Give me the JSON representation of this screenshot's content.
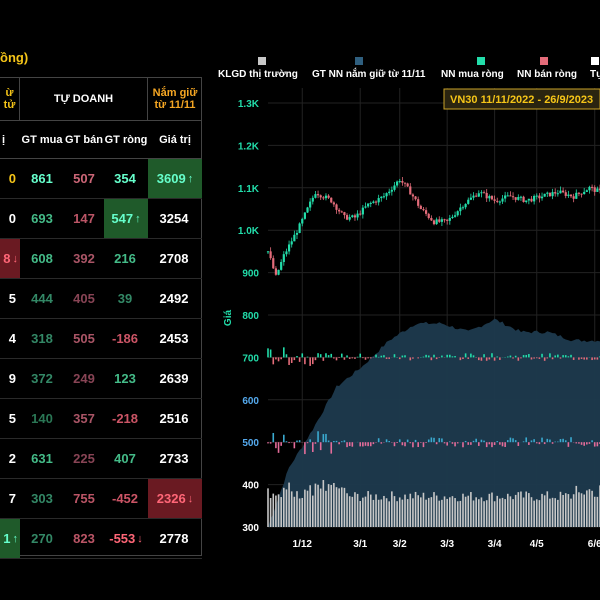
{
  "header_fragment": "ồng)",
  "table": {
    "left_header": "ừ tử",
    "group_header": "TỰ DOANH",
    "holding_header_line1": "Nắm giữ",
    "holding_header_line2": "từ 11/11",
    "col_left": "ị",
    "col_buy": "GT mua",
    "col_sell": "GT bán",
    "col_net": "GT ròng",
    "col_value": "Giá trị",
    "rows": [
      {
        "left": "0",
        "left_arrow": "",
        "left_color": "#f5c518",
        "left_bg": "",
        "buy": "861",
        "buy_color": "#66ffcc",
        "sell": "507",
        "sell_color": "#cc6677",
        "net": "354",
        "net_arrow": "",
        "net_color": "#66ffcc",
        "net_bg": "",
        "value": "3609",
        "value_arrow": "↑",
        "value_color": "#66ffcc",
        "value_bg": "#1f5a2a"
      },
      {
        "left": "0",
        "left_arrow": "",
        "left_color": "#ffffff",
        "left_bg": "",
        "buy": "693",
        "buy_color": "#44bb88",
        "sell": "147",
        "sell_color": "#bb5566",
        "net": "547",
        "net_arrow": "↑",
        "net_color": "#66ffcc",
        "net_bg": "#1f5a2a",
        "value": "3254",
        "value_arrow": "",
        "value_color": "#ffffff",
        "value_bg": ""
      },
      {
        "left": "8",
        "left_arrow": "↓",
        "left_color": "#ff6677",
        "left_bg": "#6a1a22",
        "buy": "608",
        "buy_color": "#44bb88",
        "sell": "392",
        "sell_color": "#aa5566",
        "net": "216",
        "net_arrow": "",
        "net_color": "#44bb88",
        "net_bg": "",
        "value": "2708",
        "value_arrow": "",
        "value_color": "#ffffff",
        "value_bg": ""
      },
      {
        "left": "5",
        "left_arrow": "",
        "left_color": "#ffffff",
        "left_bg": "",
        "buy": "444",
        "buy_color": "#338866",
        "sell": "405",
        "sell_color": "#884455",
        "net": "39",
        "net_arrow": "",
        "net_color": "#338866",
        "net_bg": "",
        "value": "2492",
        "value_arrow": "",
        "value_color": "#ffffff",
        "value_bg": ""
      },
      {
        "left": "4",
        "left_arrow": "",
        "left_color": "#ffffff",
        "left_bg": "",
        "buy": "318",
        "buy_color": "#338866",
        "sell": "505",
        "sell_color": "#aa5566",
        "net": "-186",
        "net_arrow": "",
        "net_color": "#cc5566",
        "net_bg": "",
        "value": "2453",
        "value_arrow": "",
        "value_color": "#ffffff",
        "value_bg": ""
      },
      {
        "left": "9",
        "left_arrow": "",
        "left_color": "#ffffff",
        "left_bg": "",
        "buy": "372",
        "buy_color": "#338866",
        "sell": "249",
        "sell_color": "#884455",
        "net": "123",
        "net_arrow": "",
        "net_color": "#44bb88",
        "net_bg": "",
        "value": "2639",
        "value_arrow": "",
        "value_color": "#ffffff",
        "value_bg": ""
      },
      {
        "left": "5",
        "left_arrow": "",
        "left_color": "#ffffff",
        "left_bg": "",
        "buy": "140",
        "buy_color": "#2a7755",
        "sell": "357",
        "sell_color": "#aa5566",
        "net": "-218",
        "net_arrow": "",
        "net_color": "#cc5566",
        "net_bg": "",
        "value": "2516",
        "value_arrow": "",
        "value_color": "#ffffff",
        "value_bg": ""
      },
      {
        "left": "2",
        "left_arrow": "",
        "left_color": "#ffffff",
        "left_bg": "",
        "buy": "631",
        "buy_color": "#44bb88",
        "sell": "225",
        "sell_color": "#884455",
        "net": "407",
        "net_arrow": "",
        "net_color": "#44bb88",
        "net_bg": "",
        "value": "2733",
        "value_arrow": "",
        "value_color": "#ffffff",
        "value_bg": ""
      },
      {
        "left": "7",
        "left_arrow": "",
        "left_color": "#ffffff",
        "left_bg": "",
        "buy": "303",
        "buy_color": "#338866",
        "sell": "755",
        "sell_color": "#bb5566",
        "net": "-452",
        "net_arrow": "",
        "net_color": "#cc5566",
        "net_bg": "",
        "value": "2326",
        "value_arrow": "↓",
        "value_color": "#ff6677",
        "value_bg": "#6a1a22"
      },
      {
        "left": "1",
        "left_arrow": "↑",
        "left_color": "#66ffcc",
        "left_bg": "#1f5a2a",
        "buy": "270",
        "buy_color": "#338866",
        "sell": "823",
        "sell_color": "#bb5566",
        "net": "-553",
        "net_arrow": "↓",
        "net_color": "#ff6677",
        "net_bg": "",
        "value": "2778",
        "value_arrow": "",
        "value_color": "#ffffff",
        "value_bg": ""
      }
    ]
  },
  "chart_data": {
    "type": "candlestick",
    "title": "VN30 11/11/2022 - 26/9/2023",
    "ylabel": "Giá",
    "legend": [
      {
        "label": "KLGD thị trường",
        "color": "#c8c8c8"
      },
      {
        "label": "GT NN nắm giữ từ 11/11",
        "color": "#2f5f7f"
      },
      {
        "label": "NN mua ròng",
        "color": "#22ddaa"
      },
      {
        "label": "NN bán ròng",
        "color": "#e46c7a"
      },
      {
        "label": "Tự",
        "color": "#ffffff"
      }
    ],
    "ylim": [
      300,
      1320
    ],
    "yticks": [
      {
        "label": "1.3K",
        "value": 1300,
        "color": "#22ddaa"
      },
      {
        "label": "1.2K",
        "value": 1200,
        "color": "#22ddaa"
      },
      {
        "label": "1.1K",
        "value": 1100,
        "color": "#22ddaa"
      },
      {
        "label": "1.0K",
        "value": 1000,
        "color": "#22ddaa"
      },
      {
        "label": "900",
        "value": 900,
        "color": "#22ddaa"
      },
      {
        "label": "800",
        "value": 800,
        "color": "#22ddaa"
      },
      {
        "label": "700",
        "value": 700,
        "color": "#22ddaa"
      },
      {
        "label": "600",
        "value": 600,
        "color": "#55aaee"
      },
      {
        "label": "500",
        "value": 500,
        "color": "#55aaee"
      },
      {
        "label": "400",
        "value": 400,
        "color": "#ffffff"
      },
      {
        "label": "300",
        "value": 300,
        "color": "#ffffff"
      }
    ],
    "xticks": [
      "1/12",
      "3/1",
      "3/2",
      "3/3",
      "3/4",
      "4/5",
      "6/6"
    ],
    "price_anchors": [
      [
        0,
        950
      ],
      [
        3,
        890
      ],
      [
        6,
        940
      ],
      [
        12,
        1010
      ],
      [
        18,
        1090
      ],
      [
        24,
        1070
      ],
      [
        29,
        1030
      ],
      [
        33,
        1030
      ],
      [
        38,
        1060
      ],
      [
        44,
        1080
      ],
      [
        50,
        1120
      ],
      [
        54,
        1090
      ],
      [
        58,
        1050
      ],
      [
        63,
        1020
      ],
      [
        68,
        1020
      ],
      [
        74,
        1060
      ],
      [
        80,
        1090
      ],
      [
        86,
        1070
      ],
      [
        92,
        1080
      ],
      [
        98,
        1070
      ],
      [
        104,
        1080
      ],
      [
        110,
        1090
      ],
      [
        116,
        1080
      ],
      [
        122,
        1100
      ],
      [
        126,
        1090
      ]
    ],
    "holding_anchors": [
      [
        0,
        300
      ],
      [
        8,
        440
      ],
      [
        16,
        520
      ],
      [
        26,
        630
      ],
      [
        36,
        680
      ],
      [
        46,
        740
      ],
      [
        56,
        780
      ],
      [
        66,
        780
      ],
      [
        76,
        760
      ],
      [
        86,
        790
      ],
      [
        96,
        760
      ],
      [
        106,
        760
      ],
      [
        116,
        740
      ],
      [
        126,
        740
      ]
    ],
    "bars_count": 127
  }
}
